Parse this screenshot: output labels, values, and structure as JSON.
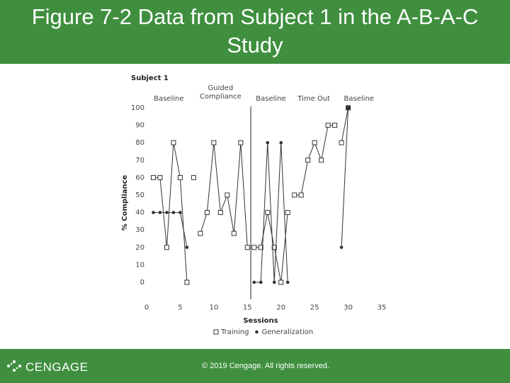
{
  "chart_data": {
    "type": "line",
    "title": "Figure 7-2 Data from Subject 1 in the A-B-A-C Study",
    "subtitle": "Subject 1",
    "x_label": "Sessions",
    "y_label": "% Compliance",
    "phases": [
      {
        "label": "Baseline",
        "x": 3.3
      },
      {
        "label": "Guided Compliance",
        "x": 11
      },
      {
        "label": "Baseline",
        "x": 18.5
      },
      {
        "label": "Time Out",
        "x": 24.9
      },
      {
        "label": "Baseline",
        "x": 31.6
      }
    ],
    "phase_lines": [
      15.5
    ],
    "xlim": [
      0,
      35
    ],
    "xticks": [
      0,
      5,
      10,
      15,
      20,
      25,
      30,
      35
    ],
    "ylim": [
      -10,
      100
    ],
    "yticks": [
      0,
      10,
      20,
      30,
      40,
      50,
      60,
      70,
      80,
      90,
      100
    ],
    "series": [
      {
        "name": "Training",
        "color": "#333333",
        "marker": "square",
        "x": [
          1,
          2,
          3,
          4,
          5,
          6,
          null,
          7,
          null,
          8,
          9,
          10,
          11,
          12,
          13,
          14,
          15,
          null,
          16,
          17,
          18,
          19,
          20,
          21,
          null,
          22,
          23,
          24,
          25,
          26,
          27,
          28,
          null,
          29,
          30
        ],
        "values": [
          60,
          60,
          20,
          80,
          60,
          0,
          null,
          60,
          null,
          28,
          40,
          80,
          40,
          50,
          28,
          80,
          20,
          null,
          20,
          20,
          40,
          20,
          0,
          40,
          null,
          50,
          50,
          70,
          80,
          70,
          90,
          90,
          null,
          80,
          100
        ]
      },
      {
        "name": "Generalization",
        "color": "#333333",
        "marker": "dot",
        "x": [
          1,
          2,
          3,
          4,
          5,
          6,
          null,
          16,
          17,
          18,
          19,
          20,
          21,
          null,
          29,
          30
        ],
        "values": [
          40,
          40,
          40,
          40,
          40,
          20,
          null,
          0,
          0,
          80,
          0,
          80,
          0,
          null,
          20,
          100
        ]
      }
    ]
  },
  "footer": {
    "logo": "CENGAGE",
    "copyright": "© 2019 Cengage. All rights reserved."
  }
}
